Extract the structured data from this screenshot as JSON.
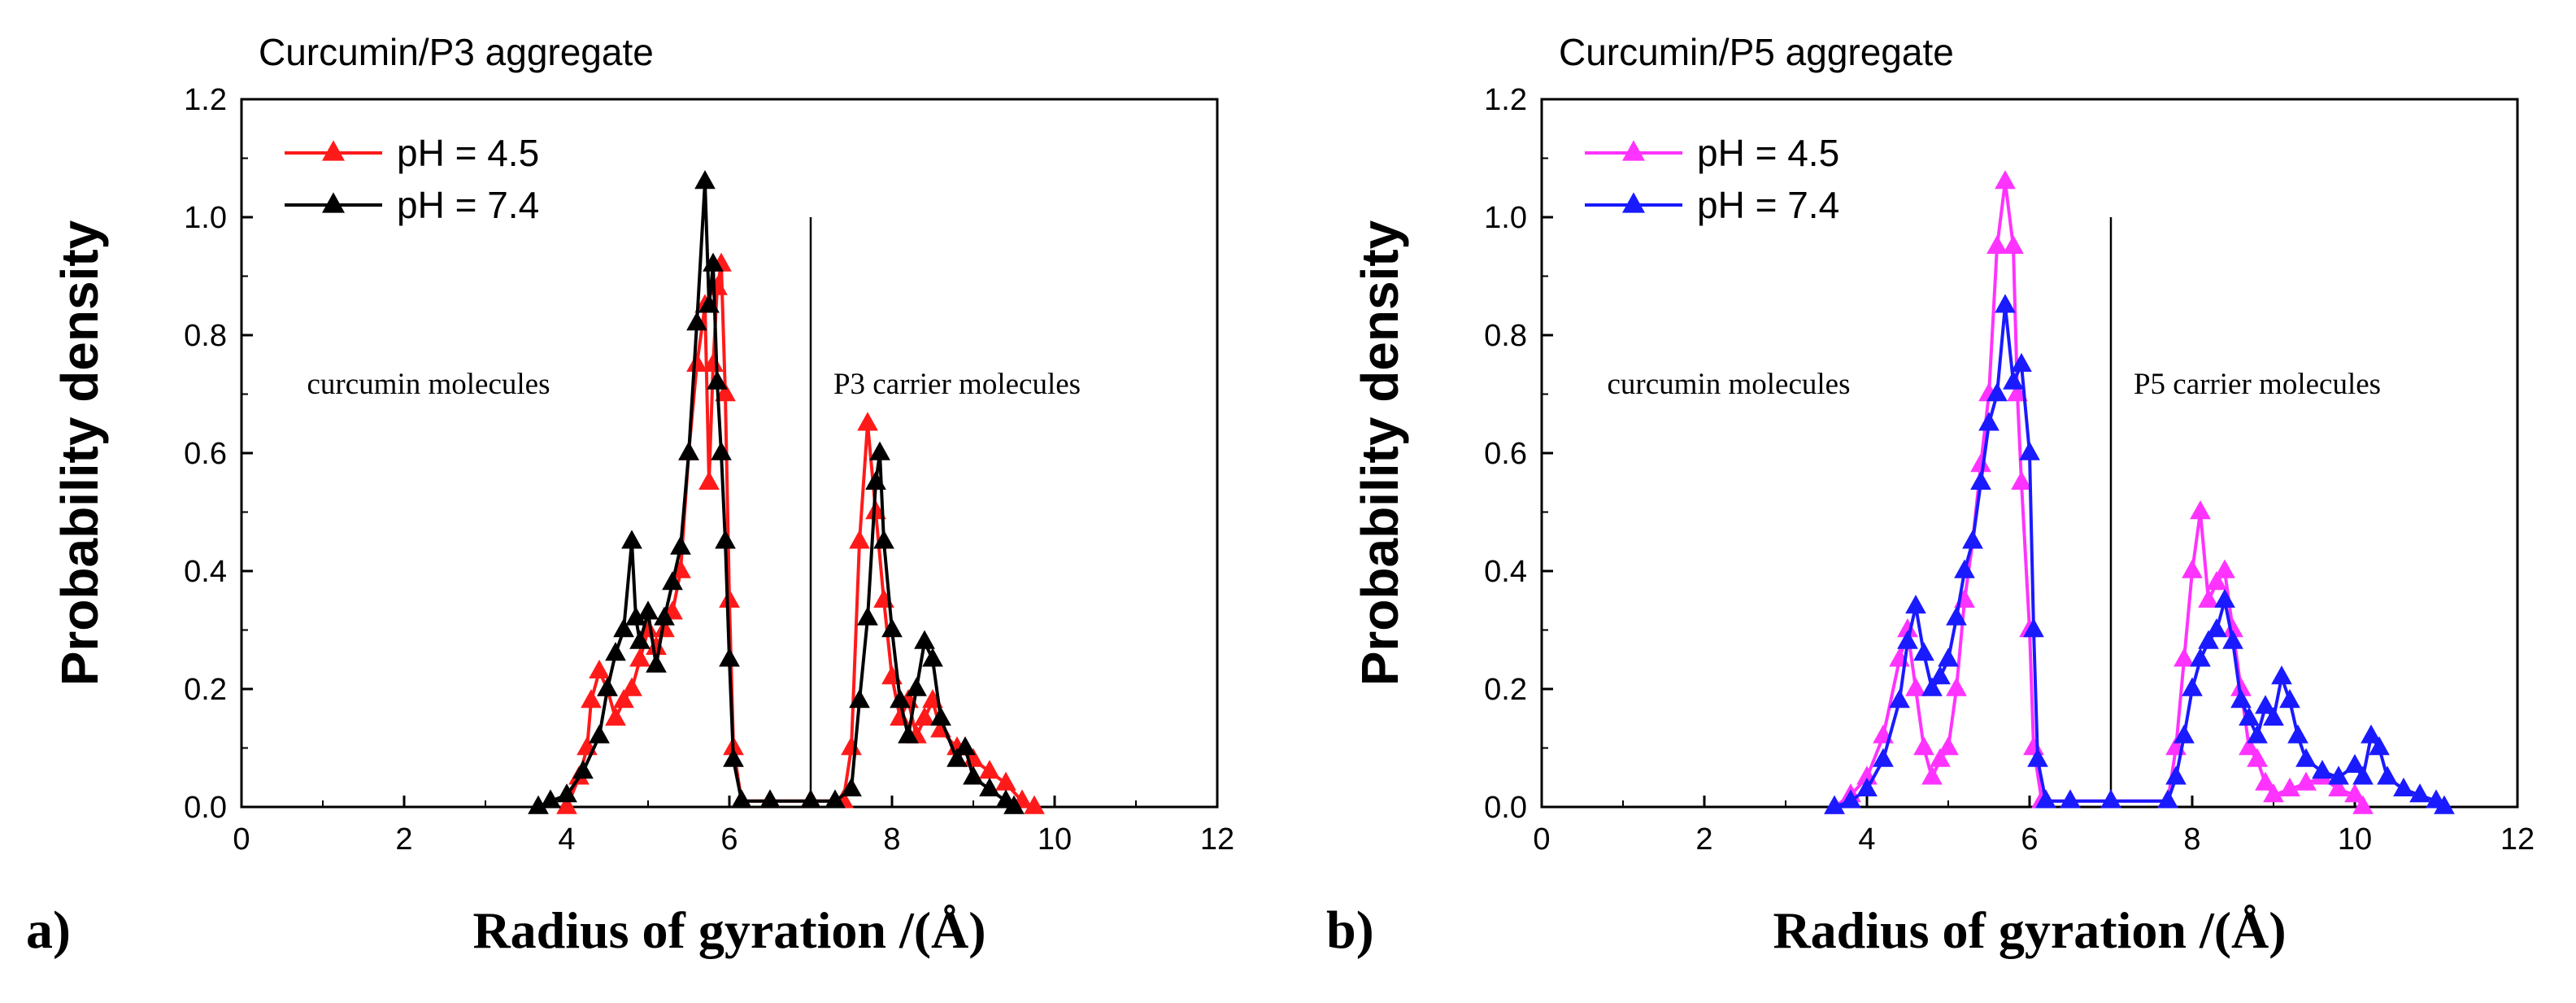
{
  "chart_data": [
    {
      "panel_label": "a)",
      "type": "line",
      "title": "Curcumin/P3 aggregate",
      "xlabel": "Radius of gyration /(Å)",
      "ylabel": "Probability density",
      "xlim": [
        0,
        12
      ],
      "ylim": [
        0,
        1.2
      ],
      "xticks": [
        "0",
        "2",
        "4",
        "6",
        "8",
        "10",
        "12"
      ],
      "yticks": [
        "0.0",
        "0.2",
        "0.4",
        "0.6",
        "0.8",
        "1.0",
        "1.2"
      ],
      "divider_x": 7.0,
      "annotations": [
        {
          "text": "curcumin molecules",
          "x": 2.3,
          "y": 0.72
        },
        {
          "text": "P3 carrier molecules",
          "x": 8.8,
          "y": 0.72
        }
      ],
      "legend": "top-left",
      "marker": "triangle",
      "series": [
        {
          "name": "pH = 4.5",
          "color": "#ff1a1a",
          "points": [
            [
              4.0,
              0.0
            ],
            [
              4.15,
              0.05
            ],
            [
              4.25,
              0.1
            ],
            [
              4.3,
              0.18
            ],
            [
              4.4,
              0.23
            ],
            [
              4.5,
              0.2
            ],
            [
              4.6,
              0.15
            ],
            [
              4.7,
              0.18
            ],
            [
              4.8,
              0.2
            ],
            [
              4.9,
              0.25
            ],
            [
              5.0,
              0.3
            ],
            [
              5.1,
              0.27
            ],
            [
              5.2,
              0.3
            ],
            [
              5.3,
              0.33
            ],
            [
              5.4,
              0.4
            ],
            [
              5.5,
              0.6
            ],
            [
              5.6,
              0.75
            ],
            [
              5.7,
              0.85
            ],
            [
              5.75,
              0.55
            ],
            [
              5.8,
              0.75
            ],
            [
              5.85,
              0.88
            ],
            [
              5.9,
              0.92
            ],
            [
              5.95,
              0.7
            ],
            [
              6.0,
              0.35
            ],
            [
              6.05,
              0.1
            ],
            [
              6.15,
              0.01
            ],
            [
              6.5,
              0.01
            ],
            [
              7.0,
              0.01
            ],
            [
              7.4,
              0.01
            ],
            [
              7.5,
              0.1
            ],
            [
              7.6,
              0.45
            ],
            [
              7.7,
              0.65
            ],
            [
              7.8,
              0.5
            ],
            [
              7.9,
              0.35
            ],
            [
              8.0,
              0.22
            ],
            [
              8.1,
              0.15
            ],
            [
              8.2,
              0.18
            ],
            [
              8.3,
              0.12
            ],
            [
              8.4,
              0.15
            ],
            [
              8.5,
              0.18
            ],
            [
              8.6,
              0.13
            ],
            [
              8.8,
              0.1
            ],
            [
              9.0,
              0.08
            ],
            [
              9.2,
              0.06
            ],
            [
              9.4,
              0.04
            ],
            [
              9.6,
              0.01
            ],
            [
              9.75,
              0.0
            ]
          ]
        },
        {
          "name": "pH = 7.4",
          "color": "#000000",
          "points": [
            [
              3.65,
              0.0
            ],
            [
              3.8,
              0.01
            ],
            [
              4.0,
              0.02
            ],
            [
              4.2,
              0.06
            ],
            [
              4.4,
              0.12
            ],
            [
              4.5,
              0.2
            ],
            [
              4.6,
              0.26
            ],
            [
              4.7,
              0.3
            ],
            [
              4.8,
              0.45
            ],
            [
              4.85,
              0.32
            ],
            [
              4.9,
              0.28
            ],
            [
              5.0,
              0.33
            ],
            [
              5.1,
              0.24
            ],
            [
              5.2,
              0.32
            ],
            [
              5.3,
              0.38
            ],
            [
              5.4,
              0.44
            ],
            [
              5.5,
              0.6
            ],
            [
              5.6,
              0.82
            ],
            [
              5.7,
              1.06
            ],
            [
              5.75,
              0.85
            ],
            [
              5.8,
              0.92
            ],
            [
              5.85,
              0.72
            ],
            [
              5.9,
              0.6
            ],
            [
              5.95,
              0.45
            ],
            [
              6.0,
              0.25
            ],
            [
              6.05,
              0.08
            ],
            [
              6.15,
              0.01
            ],
            [
              6.5,
              0.01
            ],
            [
              7.0,
              0.01
            ],
            [
              7.3,
              0.01
            ],
            [
              7.5,
              0.03
            ],
            [
              7.6,
              0.18
            ],
            [
              7.7,
              0.32
            ],
            [
              7.8,
              0.55
            ],
            [
              7.85,
              0.6
            ],
            [
              7.9,
              0.45
            ],
            [
              8.0,
              0.3
            ],
            [
              8.1,
              0.18
            ],
            [
              8.2,
              0.12
            ],
            [
              8.3,
              0.2
            ],
            [
              8.4,
              0.28
            ],
            [
              8.5,
              0.25
            ],
            [
              8.6,
              0.15
            ],
            [
              8.8,
              0.08
            ],
            [
              8.9,
              0.1
            ],
            [
              9.0,
              0.05
            ],
            [
              9.2,
              0.03
            ],
            [
              9.4,
              0.01
            ],
            [
              9.5,
              0.0
            ]
          ]
        }
      ]
    },
    {
      "panel_label": "b)",
      "type": "line",
      "title": "Curcumin/P5 aggregate",
      "xlabel": "Radius of gyration /(Å)",
      "ylabel": "Probability density",
      "xlim": [
        0,
        12
      ],
      "ylim": [
        0,
        1.2
      ],
      "xticks": [
        "0",
        "2",
        "4",
        "6",
        "8",
        "10",
        "12"
      ],
      "yticks": [
        "0.0",
        "0.2",
        "0.4",
        "0.6",
        "0.8",
        "1.0",
        "1.2"
      ],
      "divider_x": 7.0,
      "annotations": [
        {
          "text": "curcumin molecules",
          "x": 2.3,
          "y": 0.72
        },
        {
          "text": "P5 carrier molecules",
          "x": 8.8,
          "y": 0.72
        }
      ],
      "legend": "top-left",
      "marker": "triangle",
      "series": [
        {
          "name": "pH = 4.5",
          "color": "#ff33ff",
          "points": [
            [
              3.6,
              0.0
            ],
            [
              3.8,
              0.02
            ],
            [
              4.0,
              0.05
            ],
            [
              4.2,
              0.12
            ],
            [
              4.4,
              0.25
            ],
            [
              4.5,
              0.3
            ],
            [
              4.6,
              0.2
            ],
            [
              4.7,
              0.1
            ],
            [
              4.8,
              0.05
            ],
            [
              4.9,
              0.08
            ],
            [
              5.0,
              0.1
            ],
            [
              5.1,
              0.2
            ],
            [
              5.2,
              0.35
            ],
            [
              5.3,
              0.45
            ],
            [
              5.4,
              0.58
            ],
            [
              5.5,
              0.7
            ],
            [
              5.6,
              0.95
            ],
            [
              5.7,
              1.06
            ],
            [
              5.8,
              0.95
            ],
            [
              5.85,
              0.7
            ],
            [
              5.9,
              0.55
            ],
            [
              6.0,
              0.3
            ],
            [
              6.05,
              0.1
            ],
            [
              6.15,
              0.01
            ],
            [
              6.5,
              0.01
            ],
            [
              7.0,
              0.01
            ],
            [
              7.7,
              0.01
            ],
            [
              7.8,
              0.1
            ],
            [
              7.9,
              0.25
            ],
            [
              8.0,
              0.4
            ],
            [
              8.1,
              0.5
            ],
            [
              8.2,
              0.35
            ],
            [
              8.3,
              0.38
            ],
            [
              8.4,
              0.4
            ],
            [
              8.5,
              0.3
            ],
            [
              8.6,
              0.2
            ],
            [
              8.7,
              0.1
            ],
            [
              8.8,
              0.08
            ],
            [
              8.9,
              0.04
            ],
            [
              9.0,
              0.02
            ],
            [
              9.2,
              0.03
            ],
            [
              9.4,
              0.04
            ],
            [
              9.6,
              0.05
            ],
            [
              9.8,
              0.03
            ],
            [
              10.0,
              0.02
            ],
            [
              10.1,
              0.0
            ]
          ]
        },
        {
          "name": "pH = 7.4",
          "color": "#1a1aff",
          "points": [
            [
              3.6,
              0.0
            ],
            [
              3.8,
              0.01
            ],
            [
              4.0,
              0.03
            ],
            [
              4.2,
              0.08
            ],
            [
              4.4,
              0.18
            ],
            [
              4.5,
              0.28
            ],
            [
              4.6,
              0.34
            ],
            [
              4.7,
              0.26
            ],
            [
              4.8,
              0.2
            ],
            [
              4.9,
              0.22
            ],
            [
              5.0,
              0.25
            ],
            [
              5.1,
              0.32
            ],
            [
              5.2,
              0.4
            ],
            [
              5.3,
              0.45
            ],
            [
              5.4,
              0.55
            ],
            [
              5.5,
              0.65
            ],
            [
              5.6,
              0.7
            ],
            [
              5.7,
              0.85
            ],
            [
              5.8,
              0.72
            ],
            [
              5.9,
              0.75
            ],
            [
              6.0,
              0.6
            ],
            [
              6.05,
              0.3
            ],
            [
              6.1,
              0.08
            ],
            [
              6.2,
              0.01
            ],
            [
              6.5,
              0.01
            ],
            [
              7.0,
              0.01
            ],
            [
              7.7,
              0.01
            ],
            [
              7.8,
              0.05
            ],
            [
              7.9,
              0.12
            ],
            [
              8.0,
              0.2
            ],
            [
              8.1,
              0.25
            ],
            [
              8.2,
              0.28
            ],
            [
              8.3,
              0.3
            ],
            [
              8.4,
              0.35
            ],
            [
              8.5,
              0.28
            ],
            [
              8.6,
              0.18
            ],
            [
              8.7,
              0.15
            ],
            [
              8.8,
              0.12
            ],
            [
              8.9,
              0.17
            ],
            [
              9.0,
              0.15
            ],
            [
              9.1,
              0.22
            ],
            [
              9.2,
              0.18
            ],
            [
              9.3,
              0.12
            ],
            [
              9.4,
              0.08
            ],
            [
              9.6,
              0.06
            ],
            [
              9.8,
              0.05
            ],
            [
              10.0,
              0.07
            ],
            [
              10.1,
              0.05
            ],
            [
              10.2,
              0.12
            ],
            [
              10.3,
              0.1
            ],
            [
              10.4,
              0.05
            ],
            [
              10.6,
              0.03
            ],
            [
              10.8,
              0.02
            ],
            [
              11.0,
              0.01
            ],
            [
              11.1,
              0.0
            ]
          ]
        }
      ]
    }
  ]
}
